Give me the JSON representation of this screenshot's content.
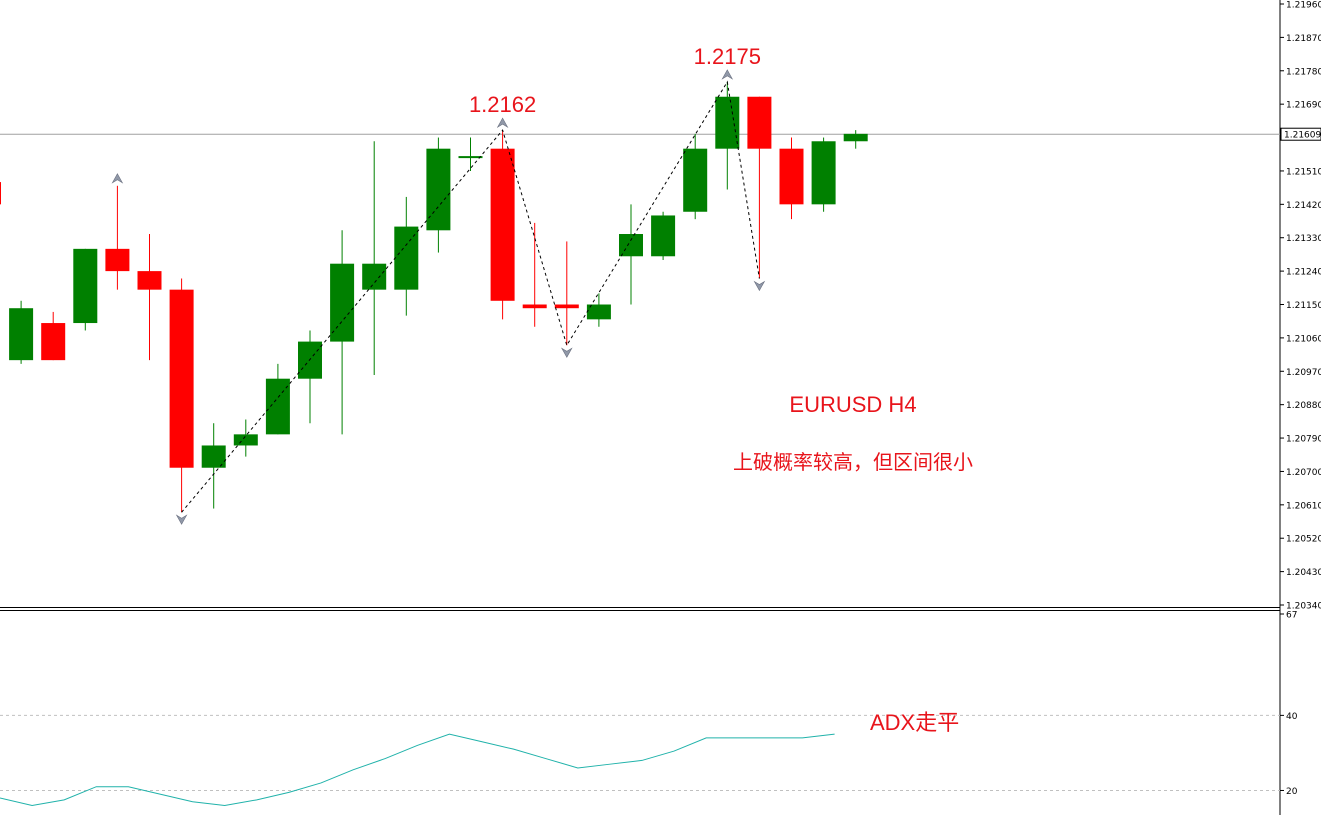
{
  "chart_data": [
    {
      "type": "candlestick",
      "title": "EURUSD H4",
      "subtitle": "上破概率较高，但区间很小",
      "ylim": [
        1.2034,
        1.2196
      ],
      "y_ticks": [
        "1.21960",
        "1.21870",
        "1.21780",
        "1.21690",
        "1.21609",
        "1.21510",
        "1.21420",
        "1.21330",
        "1.21240",
        "1.21150",
        "1.21060",
        "1.20970",
        "1.20880",
        "1.20790",
        "1.20700",
        "1.20610",
        "1.20520",
        "1.20430",
        "1.20340"
      ],
      "current_price": 1.21609,
      "current_price_label": "1.21609",
      "colors": {
        "up": "#008000",
        "down": "#ff0000",
        "price_line": "#a0a0a0",
        "zigzag": "#000000",
        "fractal": "#9098a8",
        "annotation": "#e8141b"
      },
      "candles": [
        {
          "o": 1.2148,
          "h": 1.2154,
          "l": 1.2108,
          "c": 1.2142
        },
        {
          "o": 1.21,
          "h": 1.2116,
          "l": 1.2099,
          "c": 1.2114
        },
        {
          "o": 1.211,
          "h": 1.2113,
          "l": 1.21,
          "c": 1.21
        },
        {
          "o": 1.211,
          "h": 1.213,
          "l": 1.2108,
          "c": 1.213
        },
        {
          "o": 1.213,
          "h": 1.2147,
          "l": 1.2119,
          "c": 1.2124
        },
        {
          "o": 1.2124,
          "h": 1.2134,
          "l": 1.21,
          "c": 1.2119
        },
        {
          "o": 1.2119,
          "h": 1.2122,
          "l": 1.2059,
          "c": 1.2071
        },
        {
          "o": 1.2071,
          "h": 1.2083,
          "l": 1.206,
          "c": 1.2077
        },
        {
          "o": 1.2077,
          "h": 1.2084,
          "l": 1.2074,
          "c": 1.208
        },
        {
          "o": 1.208,
          "h": 1.2099,
          "l": 1.208,
          "c": 1.2095
        },
        {
          "o": 1.2095,
          "h": 1.2108,
          "l": 1.2083,
          "c": 1.2105
        },
        {
          "o": 1.2105,
          "h": 1.2135,
          "l": 1.208,
          "c": 1.2126
        },
        {
          "o": 1.2119,
          "h": 1.2159,
          "l": 1.2096,
          "c": 1.2126
        },
        {
          "o": 1.2119,
          "h": 1.2144,
          "l": 1.2112,
          "c": 1.2136
        },
        {
          "o": 1.2135,
          "h": 1.216,
          "l": 1.2129,
          "c": 1.2157
        },
        {
          "o": 1.2155,
          "h": 1.216,
          "l": 1.2151,
          "c": 1.2155
        },
        {
          "o": 1.2157,
          "h": 1.2162,
          "l": 1.2111,
          "c": 1.2116
        },
        {
          "o": 1.2115,
          "h": 1.2137,
          "l": 1.2109,
          "c": 1.2114
        },
        {
          "o": 1.2115,
          "h": 1.2132,
          "l": 1.2104,
          "c": 1.2114
        },
        {
          "o": 1.2111,
          "h": 1.2118,
          "l": 1.2109,
          "c": 1.2115
        },
        {
          "o": 1.2128,
          "h": 1.2142,
          "l": 1.2115,
          "c": 1.2134
        },
        {
          "o": 1.2128,
          "h": 1.214,
          "l": 1.2127,
          "c": 1.2139
        },
        {
          "o": 1.214,
          "h": 1.2161,
          "l": 1.2138,
          "c": 1.2157
        },
        {
          "o": 1.2157,
          "h": 1.2175,
          "l": 1.2146,
          "c": 1.2171
        },
        {
          "o": 1.2171,
          "h": 1.2171,
          "l": 1.2122,
          "c": 1.2157
        },
        {
          "o": 1.2157,
          "h": 1.216,
          "l": 1.2138,
          "c": 1.2142
        },
        {
          "o": 1.2142,
          "h": 1.216,
          "l": 1.214,
          "c": 1.2159
        },
        {
          "o": 1.2159,
          "h": 1.2162,
          "l": 1.2157,
          "c": 1.2161
        }
      ],
      "zigzag": [
        {
          "index": 6,
          "price": 1.2059
        },
        {
          "index": 16,
          "price": 1.2162
        },
        {
          "index": 18,
          "price": 1.2104
        },
        {
          "index": 23,
          "price": 1.2175
        },
        {
          "index": 24,
          "price": 1.2122
        }
      ],
      "fractals_up": [
        {
          "index": 4,
          "price": 1.2147
        },
        {
          "index": 16,
          "price": 1.2162
        },
        {
          "index": 23,
          "price": 1.2175
        }
      ],
      "fractals_down": [
        {
          "index": 6,
          "price": 1.2059
        },
        {
          "index": 18,
          "price": 1.2104
        },
        {
          "index": 24,
          "price": 1.2122
        }
      ],
      "annotations": [
        {
          "text": "1.2162",
          "index": 16,
          "price": 1.2162
        },
        {
          "text": "1.2175",
          "index": 23,
          "price": 1.2175
        }
      ]
    },
    {
      "type": "line",
      "series": [
        {
          "values": [
            18,
            16,
            17.5,
            21,
            21,
            19,
            17,
            16,
            17.5,
            19.5,
            22,
            25.5,
            28.5,
            32,
            35,
            33,
            31,
            28.5,
            26,
            27,
            28,
            30.5,
            34,
            34,
            34,
            34,
            35
          ],
          "color": "#20b2aa"
        }
      ],
      "ylim": [
        14,
        67
      ],
      "y_ticks": [
        "67",
        "40",
        "20"
      ],
      "levels": [
        40,
        20
      ],
      "annotation": "ADX走平"
    }
  ]
}
